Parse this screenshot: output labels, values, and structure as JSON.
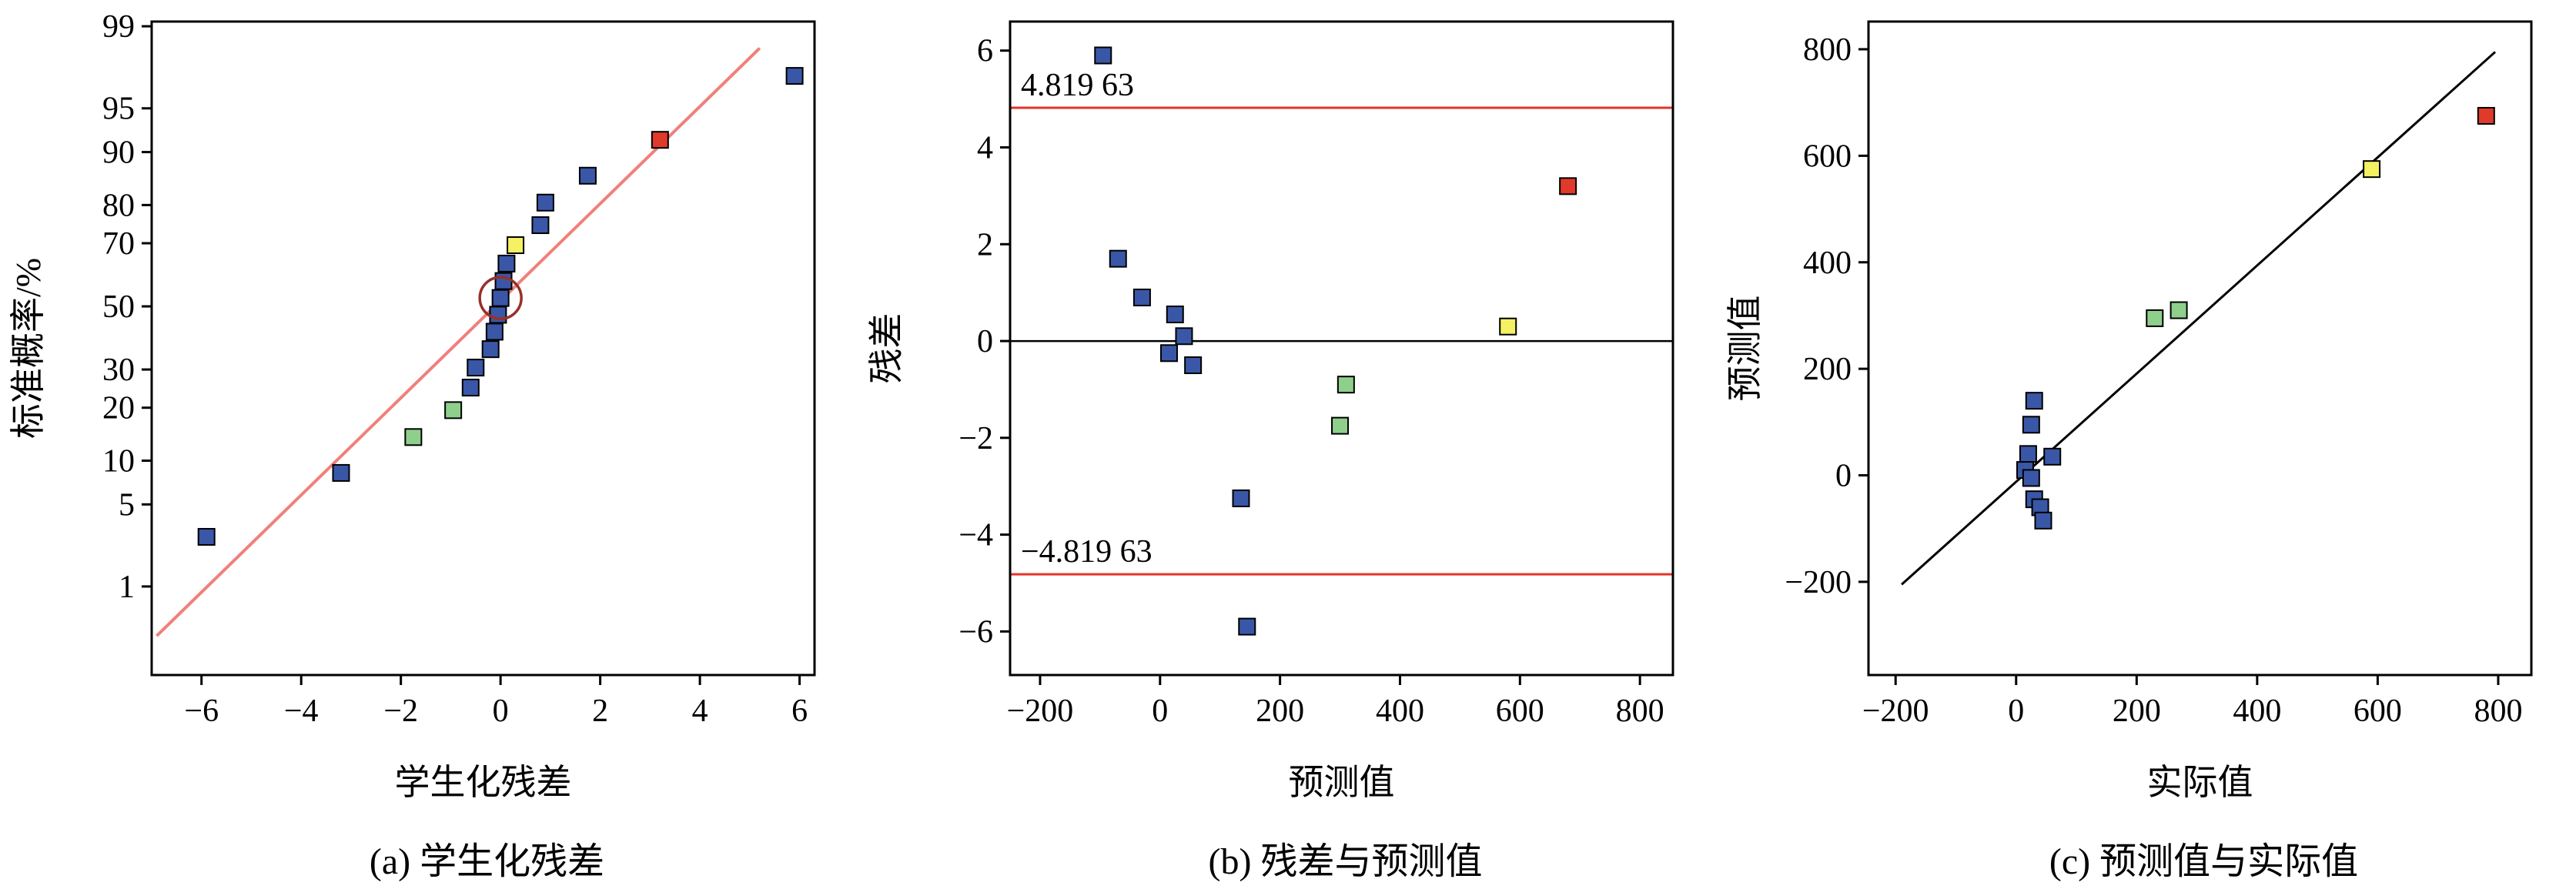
{
  "figure": {
    "background": "#ffffff"
  },
  "colors": {
    "blue": "#3A57A7",
    "green": "#8FCF8C",
    "yellow": "#F4F162",
    "red": "#E03A2B",
    "fit_line": "#F0807A",
    "ref_line": "#E5332A",
    "identity_line": "#000000",
    "zero_line": "#000000",
    "axis": "#000000",
    "ring": "#98302A",
    "marker_stroke": "#000000"
  },
  "chart_data": [
    {
      "id": "a",
      "type": "scatter",
      "caption": "(a) 学生化残差",
      "xlabel": "学生化残差",
      "ylabel": "标准概率/%",
      "yscale": "normal-probability",
      "xlim": [
        -7.0,
        6.3
      ],
      "ylim_percent": [
        0.11,
        99.1
      ],
      "xticks": [
        -6,
        -4,
        -2,
        0,
        2,
        4,
        6
      ],
      "yticks_percent": [
        1,
        5,
        10,
        20,
        30,
        50,
        70,
        80,
        90,
        95,
        99
      ],
      "grid": false,
      "fit_line": {
        "x1": -6.9,
        "p1": 0.31,
        "x2": 5.2,
        "p2": 98.4
      },
      "points": [
        {
          "x": -5.9,
          "p": 2.78,
          "color": "blue"
        },
        {
          "x": -3.2,
          "p": 8.33,
          "color": "blue"
        },
        {
          "x": -1.75,
          "p": 13.89,
          "color": "green"
        },
        {
          "x": -0.95,
          "p": 19.44,
          "color": "green"
        },
        {
          "x": -0.6,
          "p": 25.0,
          "color": "blue"
        },
        {
          "x": -0.5,
          "p": 30.56,
          "color": "blue"
        },
        {
          "x": -0.2,
          "p": 36.11,
          "color": "blue"
        },
        {
          "x": -0.12,
          "p": 41.67,
          "color": "blue"
        },
        {
          "x": -0.05,
          "p": 47.22,
          "color": "blue"
        },
        {
          "x": 0.0,
          "p": 52.78,
          "color": "blue"
        },
        {
          "x": 0.06,
          "p": 58.33,
          "color": "blue"
        },
        {
          "x": 0.12,
          "p": 63.89,
          "color": "blue"
        },
        {
          "x": 0.3,
          "p": 69.44,
          "color": "yellow"
        },
        {
          "x": 0.8,
          "p": 75.0,
          "color": "blue"
        },
        {
          "x": 0.9,
          "p": 80.56,
          "color": "blue"
        },
        {
          "x": 1.75,
          "p": 86.11,
          "color": "blue"
        },
        {
          "x": 3.2,
          "p": 91.67,
          "color": "red"
        },
        {
          "x": 5.9,
          "p": 97.22,
          "color": "blue"
        }
      ],
      "circled_index": 9
    },
    {
      "id": "b",
      "type": "scatter",
      "caption": "(b) 残差与预测值",
      "xlabel": "预测值",
      "ylabel": "残差",
      "xlim": [
        -250,
        855
      ],
      "ylim": [
        -6.9,
        6.6
      ],
      "xticks": [
        -200,
        0,
        200,
        400,
        600,
        800
      ],
      "yticks": [
        -6,
        -4,
        -2,
        0,
        2,
        4,
        6
      ],
      "grid": false,
      "zero_line_y": 0,
      "ref_lines": [
        {
          "y": 4.81963,
          "label": "4.819 63"
        },
        {
          "y": -4.81963,
          "label": "−4.819 63"
        }
      ],
      "points": [
        {
          "x": -95,
          "y": 5.9,
          "color": "blue"
        },
        {
          "x": -70,
          "y": 1.7,
          "color": "blue"
        },
        {
          "x": -30,
          "y": 0.9,
          "color": "blue"
        },
        {
          "x": 25,
          "y": 0.55,
          "color": "blue"
        },
        {
          "x": 40,
          "y": 0.1,
          "color": "blue"
        },
        {
          "x": 15,
          "y": -0.25,
          "color": "blue"
        },
        {
          "x": 55,
          "y": -0.5,
          "color": "blue"
        },
        {
          "x": 135,
          "y": -3.25,
          "color": "blue"
        },
        {
          "x": 145,
          "y": -5.9,
          "color": "blue"
        },
        {
          "x": 310,
          "y": -0.9,
          "color": "green"
        },
        {
          "x": 300,
          "y": -1.75,
          "color": "green"
        },
        {
          "x": 580,
          "y": 0.3,
          "color": "yellow"
        },
        {
          "x": 680,
          "y": 3.2,
          "color": "red"
        }
      ]
    },
    {
      "id": "c",
      "type": "scatter",
      "caption": "(c) 预测值与实际值",
      "xlabel": "实际值",
      "ylabel": "预测值",
      "xlim": [
        -245,
        855
      ],
      "ylim": [
        -375,
        852
      ],
      "xticks": [
        -200,
        0,
        200,
        400,
        600,
        800
      ],
      "yticks": [
        -200,
        0,
        200,
        400,
        600,
        800
      ],
      "grid": false,
      "identity_line": {
        "x1": -190,
        "y1": -205,
        "x2": 795,
        "y2": 795
      },
      "points": [
        {
          "x": 30,
          "y": 140,
          "color": "blue"
        },
        {
          "x": 25,
          "y": 95,
          "color": "blue"
        },
        {
          "x": 20,
          "y": 40,
          "color": "blue"
        },
        {
          "x": 60,
          "y": 35,
          "color": "blue"
        },
        {
          "x": 15,
          "y": 10,
          "color": "blue"
        },
        {
          "x": 25,
          "y": -5,
          "color": "blue"
        },
        {
          "x": 30,
          "y": -45,
          "color": "blue"
        },
        {
          "x": 40,
          "y": -60,
          "color": "blue"
        },
        {
          "x": 45,
          "y": -85,
          "color": "blue"
        },
        {
          "x": 230,
          "y": 295,
          "color": "green"
        },
        {
          "x": 270,
          "y": 310,
          "color": "green"
        },
        {
          "x": 590,
          "y": 575,
          "color": "yellow"
        },
        {
          "x": 780,
          "y": 675,
          "color": "red"
        }
      ]
    }
  ]
}
